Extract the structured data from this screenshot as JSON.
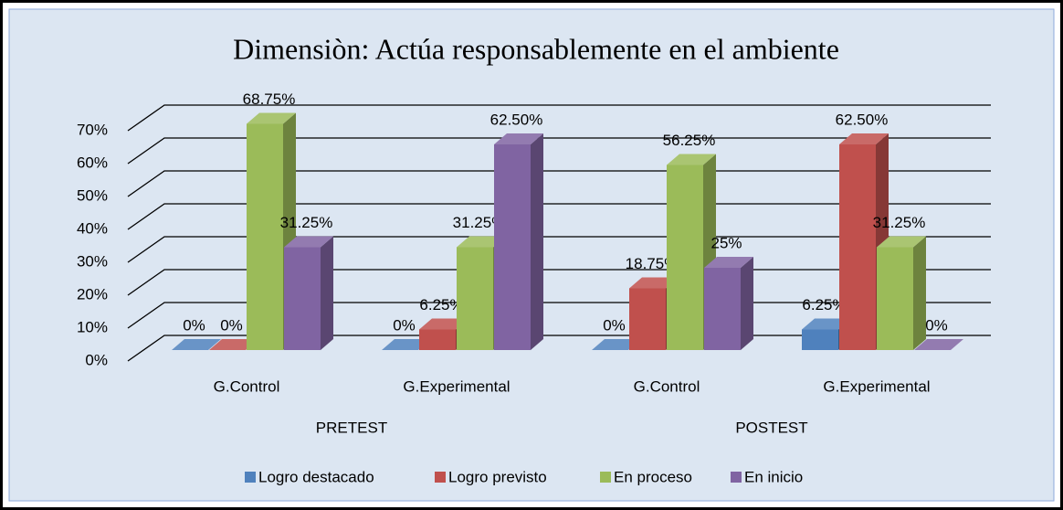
{
  "chart_data": {
    "type": "bar3d",
    "title": "Dimensiòn: Actúa responsablemente en el ambiente",
    "categories": [
      "G.Control",
      "G.Experimental",
      "G.Control",
      "G.Experimental"
    ],
    "groups": [
      "PRETEST",
      "POSTEST"
    ],
    "series": [
      {
        "name": "Logro destacado",
        "color": "#4f81bd",
        "values": [
          0,
          0,
          0,
          6.25
        ],
        "value_labels": [
          "0%",
          "0%",
          "0%",
          "6.25%"
        ]
      },
      {
        "name": "Logro previsto",
        "color": "#c0504d",
        "values": [
          0,
          6.25,
          18.75,
          62.5
        ],
        "value_labels": [
          "0%",
          "6.25%",
          "18.75%",
          "62.50%"
        ]
      },
      {
        "name": "En proceso",
        "color": "#9bbb59",
        "values": [
          68.75,
          31.25,
          56.25,
          31.25
        ],
        "value_labels": [
          "68.75%",
          "31.25%",
          "56.25%",
          "31.25%"
        ]
      },
      {
        "name": "En inicio",
        "color": "#8064a2",
        "values": [
          31.25,
          62.5,
          25,
          0
        ],
        "value_labels": [
          "31.25%",
          "62.50%",
          "25%",
          "0%"
        ]
      }
    ],
    "ylim": [
      0,
      70
    ],
    "yticks": [
      {
        "value": 0,
        "label": "0%"
      },
      {
        "value": 10,
        "label": "10%"
      },
      {
        "value": 20,
        "label": "20%"
      },
      {
        "value": 30,
        "label": "30%"
      },
      {
        "value": 40,
        "label": "40%"
      },
      {
        "value": 50,
        "label": "50%"
      },
      {
        "value": 60,
        "label": "60%"
      },
      {
        "value": 70,
        "label": "70%"
      }
    ],
    "grid": true,
    "legend": "bottom"
  }
}
